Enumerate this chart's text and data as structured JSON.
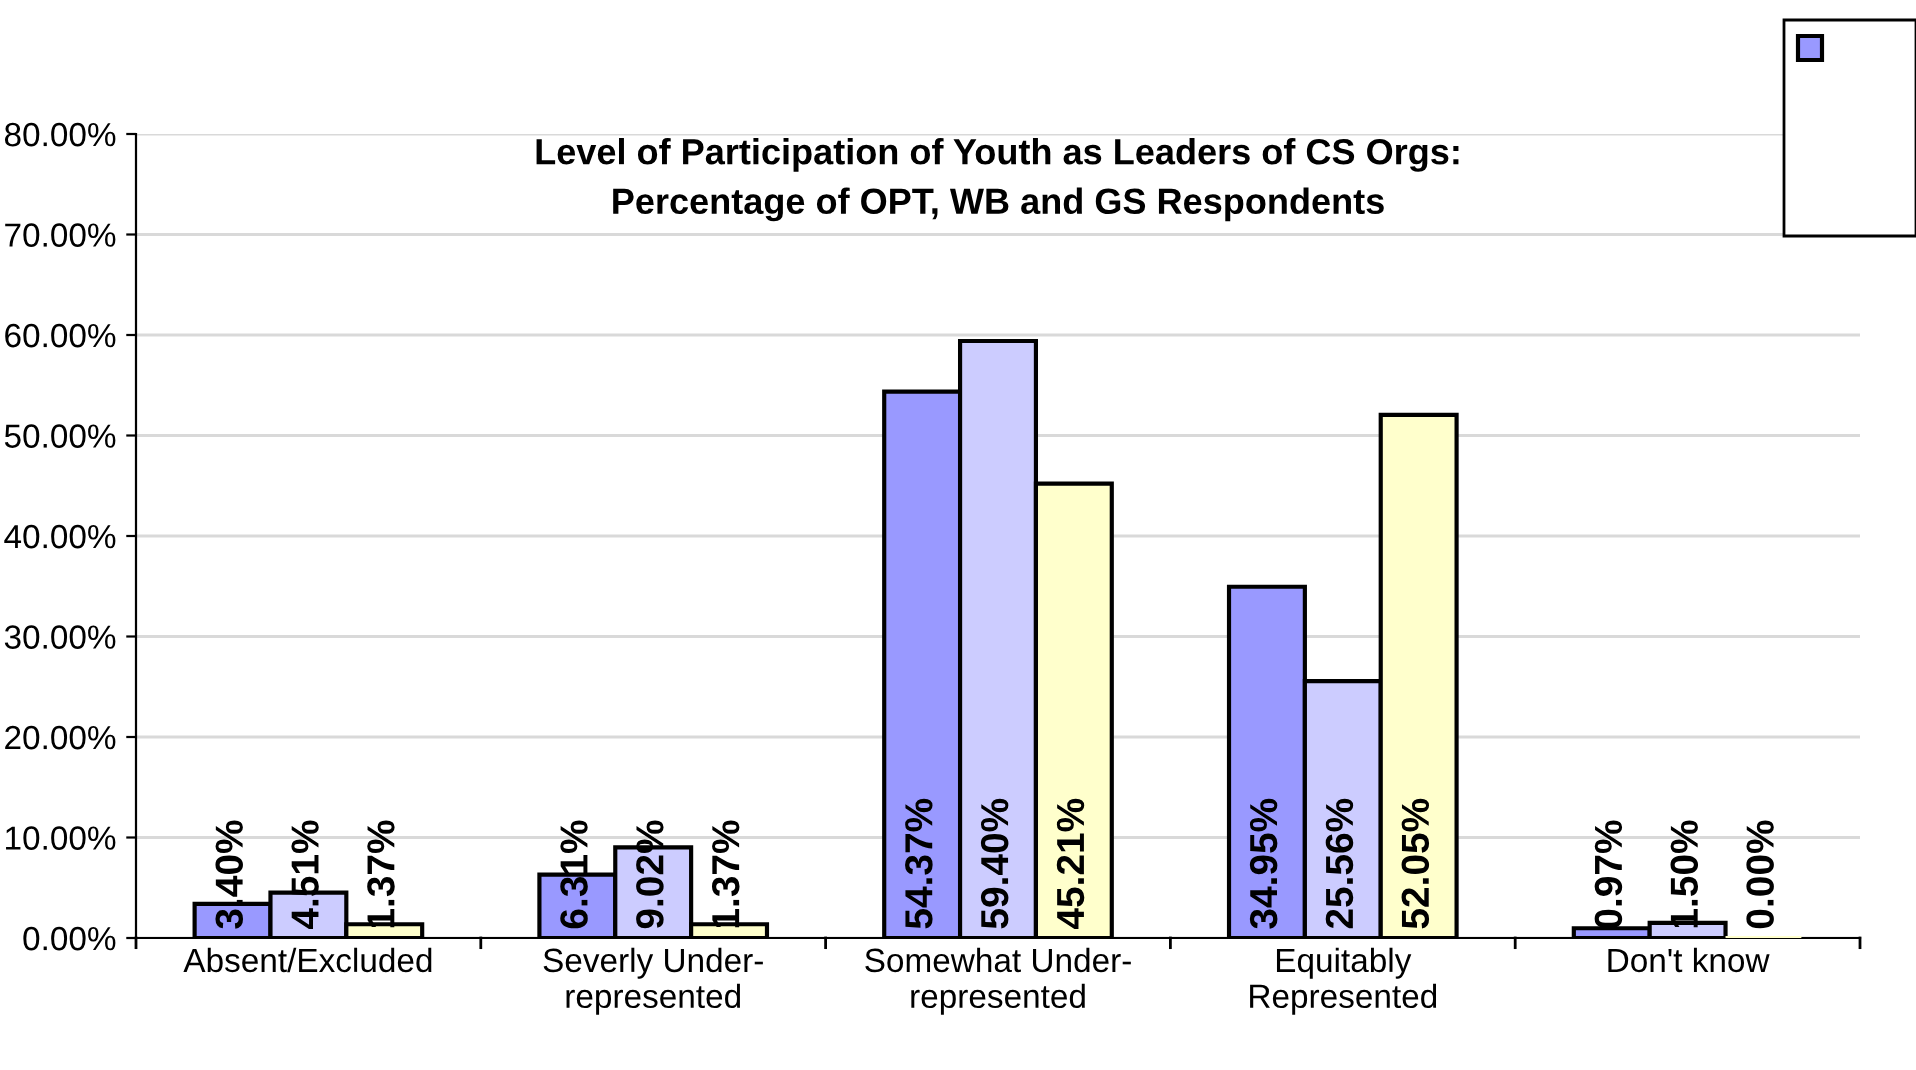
{
  "chart_data": {
    "type": "bar",
    "title": "Level of Participation of Youth as Leaders of CS Orgs:\nPercentage of OPT, WB and GS Respondents",
    "categories": [
      "Absent/Excluded",
      "Severly Under-\nrepresented",
      "Somewhat Under-\nrepresented",
      "Equitably\nRepresented",
      "Don't know"
    ],
    "series": [
      {
        "color": "#9999ff",
        "values": [
          3.4,
          6.31,
          54.37,
          34.95,
          0.97
        ],
        "value_labels": [
          "3.40%",
          "6.31%",
          "54.37%",
          "34.95%",
          "0.97%"
        ]
      },
      {
        "color": "#ccccff",
        "values": [
          4.51,
          9.02,
          59.4,
          25.56,
          1.5
        ],
        "value_labels": [
          "4.51%",
          "9.02%",
          "59.40%",
          "25.56%",
          "1.50%"
        ]
      },
      {
        "color": "#ffffcc",
        "values": [
          1.37,
          1.37,
          45.21,
          52.05,
          0.0
        ],
        "value_labels": [
          "1.37%",
          "1.37%",
          "45.21%",
          "52.05%",
          "0.00%"
        ]
      }
    ],
    "ylim": [
      0,
      80
    ],
    "yticks": [
      {
        "value": 0,
        "label": "0.00%"
      },
      {
        "value": 10,
        "label": "10.00%"
      },
      {
        "value": 20,
        "label": "20.00%"
      },
      {
        "value": 30,
        "label": "30.00%"
      },
      {
        "value": 40,
        "label": "40.00%"
      },
      {
        "value": 50,
        "label": "50.00%"
      },
      {
        "value": 60,
        "label": "60.00%"
      },
      {
        "value": 70,
        "label": "70.00%"
      },
      {
        "value": 80,
        "label": "80.00%"
      }
    ],
    "grid": "y"
  }
}
